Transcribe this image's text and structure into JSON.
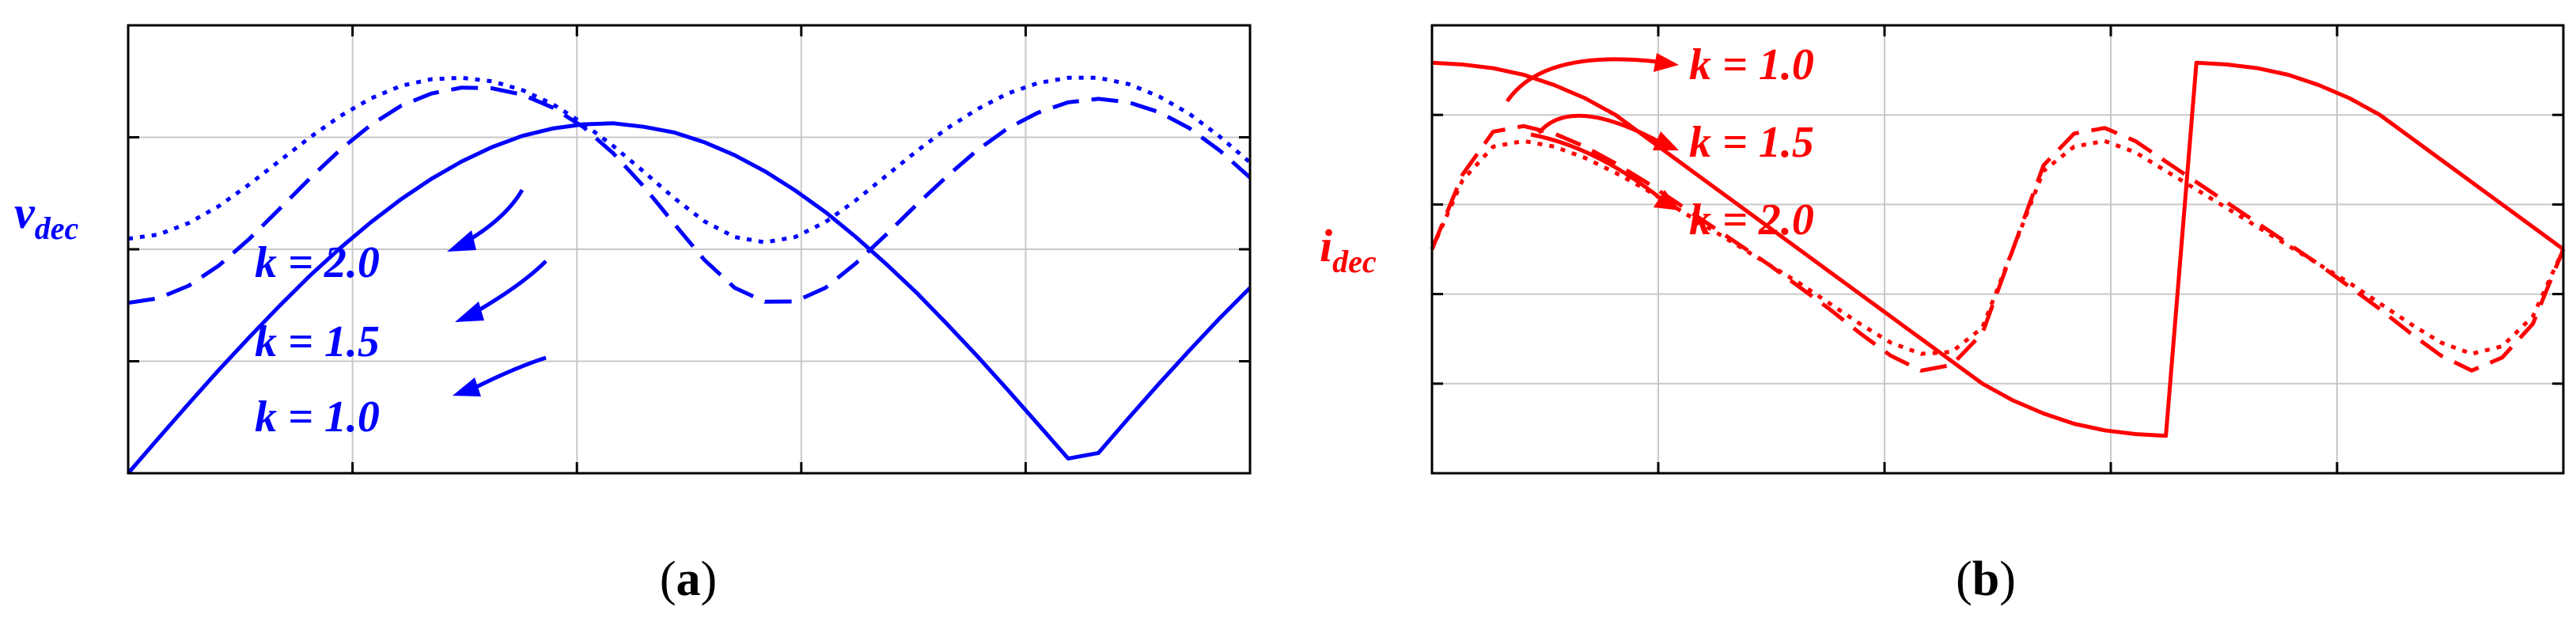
{
  "colors": {
    "a": "#0000ff",
    "b": "#ff0000",
    "grid": "#c8c8c8",
    "axes": "#000000"
  },
  "chart_data": [
    {
      "type": "line",
      "panel": "a",
      "caption_letter": "a",
      "ylabel_main": "v",
      "ylabel_sub": "dec",
      "xlim": [
        0,
        3.7
      ],
      "ylim": [
        0,
        1.28
      ],
      "grid": true,
      "series": [
        {
          "name": "k = 1.0",
          "line_style": "solid",
          "x": [
            0,
            0.1,
            0.2,
            0.3,
            0.4,
            0.5,
            0.6,
            0.7,
            0.8,
            0.9,
            1.0,
            1.1,
            1.2,
            1.3,
            1.4,
            1.5,
            1.6,
            1.7,
            1.8,
            1.9,
            2.0,
            2.1,
            2.2,
            2.3,
            2.4,
            2.5,
            2.6,
            2.7,
            2.8,
            2.9,
            3.0,
            3.1,
            3.2,
            3.3,
            3.4,
            3.5,
            3.6,
            3.7
          ],
          "y": [
            0,
            0.1,
            0.199,
            0.296,
            0.389,
            0.479,
            0.565,
            0.644,
            0.717,
            0.783,
            0.841,
            0.891,
            0.932,
            0.964,
            0.985,
            0.997,
            1.0,
            0.99,
            0.974,
            0.946,
            0.909,
            0.863,
            0.808,
            0.746,
            0.675,
            0.598,
            0.516,
            0.427,
            0.335,
            0.239,
            0.141,
            0.042,
            0.058,
            0.158,
            0.256,
            0.351,
            0.443,
            0.53
          ]
        },
        {
          "name": "k = 1.5",
          "line_style": "dashed",
          "x": [
            0,
            0.1,
            0.2,
            0.3,
            0.4,
            0.5,
            0.6,
            0.7,
            0.8,
            0.9,
            1.0,
            1.1,
            1.2,
            1.3,
            1.4,
            1.5,
            1.6,
            1.7,
            1.8,
            1.9,
            2.0,
            2.1,
            2.2,
            2.3,
            2.4,
            2.5,
            2.6,
            2.7,
            2.8,
            2.9,
            3.0,
            3.1,
            3.2,
            3.3,
            3.4,
            3.5,
            3.6,
            3.7
          ],
          "y": [
            0.487,
            0.5,
            0.536,
            0.594,
            0.67,
            0.756,
            0.843,
            0.925,
            0.995,
            1.05,
            1.085,
            1.102,
            1.1,
            1.082,
            1.045,
            0.99,
            0.914,
            0.82,
            0.714,
            0.61,
            0.53,
            0.49,
            0.491,
            0.53,
            0.6,
            0.682,
            0.767,
            0.848,
            0.923,
            0.985,
            1.03,
            1.06,
            1.07,
            1.06,
            1.032,
            0.986,
            0.922,
            0.845
          ]
        },
        {
          "name": "k = 2.0",
          "line_style": "dotted",
          "x": [
            0,
            0.1,
            0.2,
            0.3,
            0.4,
            0.5,
            0.6,
            0.7,
            0.8,
            0.9,
            1.0,
            1.1,
            1.2,
            1.3,
            1.4,
            1.5,
            1.6,
            1.7,
            1.8,
            1.9,
            2.0,
            2.1,
            2.2,
            2.3,
            2.4,
            2.5,
            2.6,
            2.7,
            2.8,
            2.9,
            3.0,
            3.1,
            3.2,
            3.3,
            3.4,
            3.5,
            3.6,
            3.7
          ],
          "y": [
            0.67,
            0.682,
            0.715,
            0.764,
            0.826,
            0.893,
            0.96,
            1.021,
            1.071,
            1.107,
            1.126,
            1.13,
            1.12,
            1.095,
            1.055,
            1.0,
            0.935,
            0.862,
            0.787,
            0.72,
            0.675,
            0.66,
            0.675,
            0.718,
            0.78,
            0.85,
            0.92,
            0.985,
            1.04,
            1.085,
            1.115,
            1.13,
            1.13,
            1.112,
            1.077,
            1.027,
            0.962,
            0.888
          ]
        }
      ],
      "annotations": [
        "k = 2.0",
        "k = 1.5",
        "k = 1.0"
      ]
    },
    {
      "type": "line",
      "panel": "b",
      "caption_letter": "b",
      "ylabel_main": "i",
      "ylabel_sub": "dec",
      "xlim": [
        0,
        3.7
      ],
      "ylim": [
        -1.2,
        1.2
      ],
      "grid": true,
      "series": [
        {
          "name": "k = 1.0",
          "line_style": "solid",
          "x": [
            0,
            0.1,
            0.2,
            0.3,
            0.4,
            0.5,
            0.6,
            0.7,
            0.8,
            0.9,
            1.0,
            1.1,
            1.2,
            1.3,
            1.4,
            1.5,
            1.6,
            1.7,
            1.8,
            1.9,
            2.0,
            2.1,
            2.2,
            2.3,
            2.4,
            2.5,
            2.6,
            2.7,
            2.8,
            2.9,
            3.0,
            3.1,
            3.2,
            3.3,
            3.4,
            3.5,
            3.6,
            3.7
          ],
          "y": [
            1.0,
            0.99,
            0.97,
            0.935,
            0.88,
            0.81,
            0.72,
            0.6,
            0.48,
            0.36,
            0.24,
            0.12,
            0.0,
            -0.12,
            -0.24,
            -0.36,
            -0.48,
            -0.6,
            -0.72,
            -0.81,
            -0.88,
            -0.935,
            -0.97,
            -0.99,
            -1.0,
            1.0,
            0.99,
            0.97,
            0.935,
            0.88,
            0.81,
            0.72,
            0.6,
            0.48,
            0.36,
            0.24,
            0.12,
            0.0
          ]
        },
        {
          "name": "k = 1.5",
          "line_style": "dashed",
          "x": [
            0,
            0.1,
            0.2,
            0.3,
            0.4,
            0.5,
            0.6,
            0.7,
            0.8,
            0.9,
            1.0,
            1.1,
            1.2,
            1.3,
            1.4,
            1.5,
            1.6,
            1.7,
            1.8,
            1.9,
            2.0,
            2.1,
            2.2,
            2.3,
            2.4,
            2.5,
            2.6,
            2.7,
            2.8,
            2.9,
            3.0,
            3.1,
            3.2,
            3.3,
            3.4,
            3.5,
            3.6,
            3.7
          ],
          "y": [
            0.0,
            0.4,
            0.63,
            0.66,
            0.62,
            0.55,
            0.46,
            0.36,
            0.25,
            0.14,
            0.03,
            -0.08,
            -0.2,
            -0.32,
            -0.45,
            -0.57,
            -0.65,
            -0.62,
            -0.45,
            0.0,
            0.45,
            0.62,
            0.65,
            0.58,
            0.47,
            0.36,
            0.25,
            0.14,
            0.03,
            -0.08,
            -0.2,
            -0.32,
            -0.45,
            -0.57,
            -0.65,
            -0.58,
            -0.4,
            0.0
          ]
        },
        {
          "name": "k = 2.0",
          "line_style": "dotted",
          "x": [
            0,
            0.1,
            0.2,
            0.3,
            0.4,
            0.5,
            0.6,
            0.7,
            0.8,
            0.9,
            1.0,
            1.1,
            1.2,
            1.3,
            1.4,
            1.5,
            1.6,
            1.7,
            1.8,
            1.9,
            2.0,
            2.1,
            2.2,
            2.3,
            2.4,
            2.5,
            2.6,
            2.7,
            2.8,
            2.9,
            3.0,
            3.1,
            3.2,
            3.3,
            3.4,
            3.5,
            3.6,
            3.7
          ],
          "y": [
            0.0,
            0.37,
            0.55,
            0.58,
            0.55,
            0.49,
            0.41,
            0.32,
            0.22,
            0.12,
            0.02,
            -0.08,
            -0.18,
            -0.29,
            -0.4,
            -0.5,
            -0.56,
            -0.55,
            -0.42,
            0.0,
            0.42,
            0.55,
            0.58,
            0.52,
            0.42,
            0.32,
            0.22,
            0.12,
            0.02,
            -0.08,
            -0.18,
            -0.29,
            -0.4,
            -0.5,
            -0.56,
            -0.52,
            -0.36,
            0.0
          ]
        }
      ],
      "annotations": [
        "k = 1.0",
        "k = 1.5",
        "k = 2.0"
      ]
    }
  ]
}
